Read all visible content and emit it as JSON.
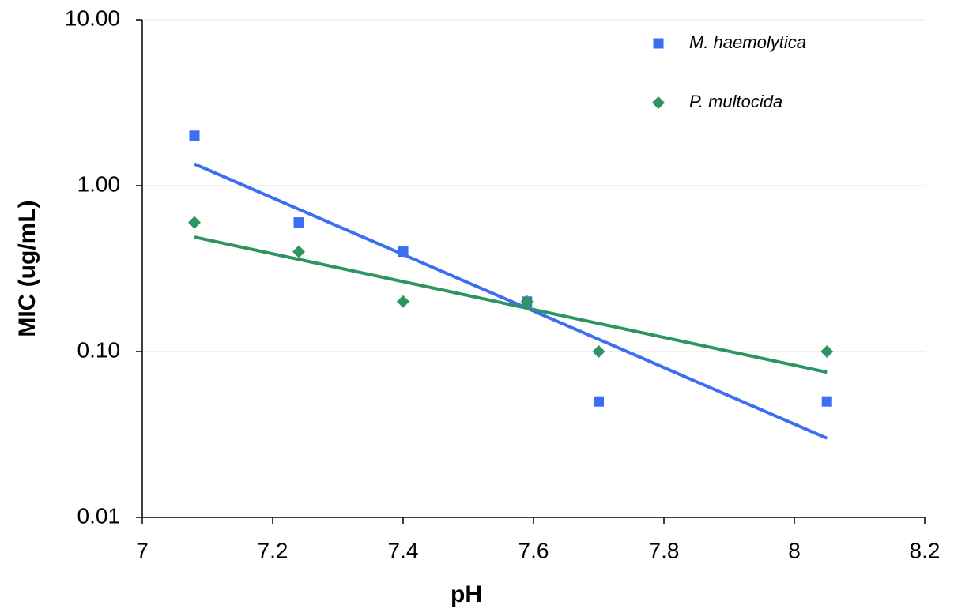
{
  "chart_data": {
    "type": "scatter",
    "x_label": "pH",
    "y_label": "MIC (ug/mL)",
    "xlim": [
      7,
      8.2
    ],
    "xticks": [
      7,
      7.2,
      7.4,
      7.6,
      7.8,
      8,
      8.2
    ],
    "ylim": [
      0.01,
      10
    ],
    "yscale": "log",
    "yticks": [
      {
        "value": 0.01,
        "label": "0.01"
      },
      {
        "value": 0.1,
        "label": "0.10"
      },
      {
        "value": 1,
        "label": "1.00"
      },
      {
        "value": 10,
        "label": "10.00"
      }
    ],
    "grid": true,
    "legend": "top-right",
    "series": [
      {
        "name": "M. haemolytica",
        "color": "#3b6ef2",
        "marker": "square",
        "x": [
          7.08,
          7.24,
          7.4,
          7.59,
          7.7,
          8.05
        ],
        "values": [
          2,
          0.6,
          0.4,
          0.2,
          0.05,
          0.05
        ],
        "trend": {
          "x": [
            7.08,
            8.05
          ],
          "values": [
            1.35,
            0.03
          ]
        }
      },
      {
        "name": "P. multocida",
        "color": "#2e9462",
        "marker": "diamond",
        "x": [
          7.08,
          7.24,
          7.4,
          7.59,
          7.7,
          8.05
        ],
        "values": [
          0.6,
          0.4,
          0.2,
          0.2,
          0.1,
          0.1
        ],
        "trend": {
          "x": [
            7.08,
            8.05
          ],
          "values": [
            0.49,
            0.075
          ]
        }
      }
    ]
  }
}
